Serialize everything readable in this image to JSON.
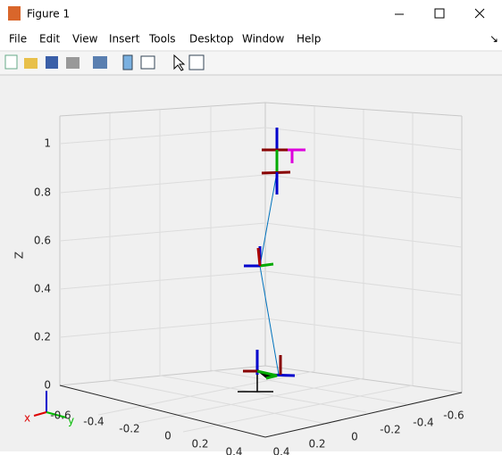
{
  "window": {
    "title": "Figure 1"
  },
  "menu": {
    "items": [
      "File",
      "Edit",
      "View",
      "Insert",
      "Tools",
      "Desktop",
      "Window",
      "Help"
    ]
  },
  "plot": {
    "zlabel": "Z",
    "zticks": [
      "0",
      "0.2",
      "0.4",
      "0.6",
      "0.8",
      "1"
    ],
    "xticks": [
      "-0.6",
      "-0.4",
      "-0.2",
      "0",
      "0.2",
      "0.4"
    ],
    "yticks": [
      "-0.6",
      "-0.4",
      "-0.2",
      "0",
      "0.2",
      "0.4"
    ],
    "triad": {
      "x": "x",
      "y": "y"
    }
  }
}
